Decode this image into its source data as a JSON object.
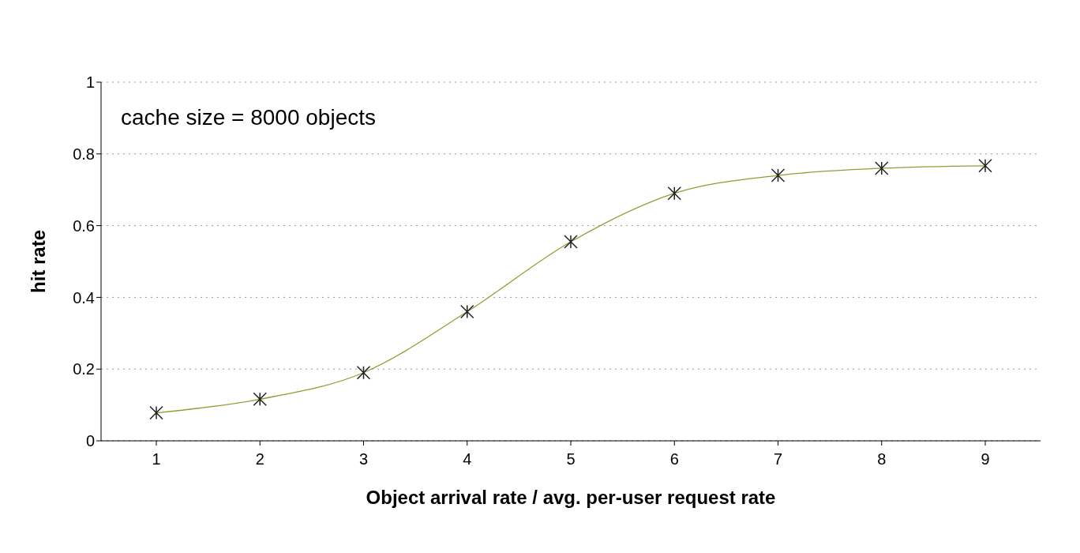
{
  "chart_data": {
    "type": "line",
    "xlabel": "Object arrival rate / avg. per-user request rate",
    "ylabel": "hit rate",
    "categories": [
      "1",
      "2",
      "3",
      "4",
      "5",
      "6",
      "7",
      "8",
      "9"
    ],
    "series": [
      {
        "color": "#999933",
        "values": [
          0.078,
          0.116,
          0.19,
          0.36,
          0.555,
          0.69,
          0.74,
          0.76,
          0.767
        ]
      }
    ],
    "ylim": [
      0,
      1
    ],
    "yticks": [
      0,
      0.2,
      0.4,
      0.6,
      0.8,
      1
    ],
    "grid": "y",
    "marker": "cross",
    "annotations": [
      "cache size = 8000 objects"
    ]
  }
}
